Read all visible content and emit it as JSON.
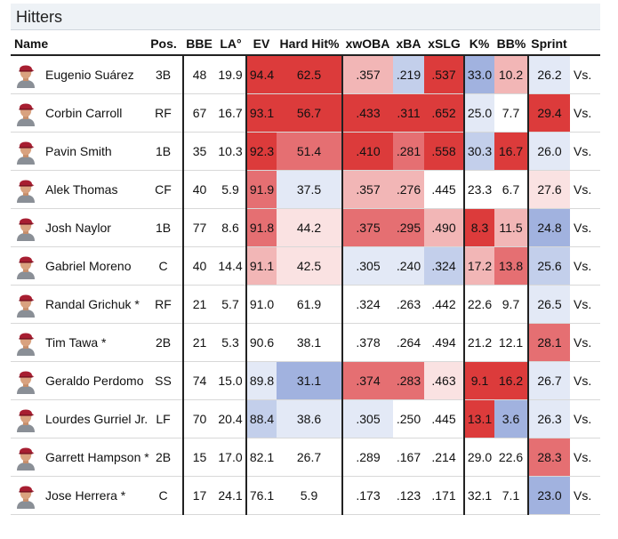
{
  "section_title": "Hitters",
  "columns": {
    "name": "Name",
    "pos": "Pos.",
    "bbe": "BBE",
    "la": "LA°",
    "ev": "EV",
    "hardhit": "Hard Hit%",
    "xwoba": "xwOBA",
    "xba": "xBA",
    "xslg": "xSLG",
    "k": "K%",
    "bb": "BB%",
    "sprint": "Sprint"
  },
  "heat_colors": {
    "red_strong": "#dc3b3b",
    "red_mid": "#e56f72",
    "red_light": "#f2b6b6",
    "red_faint": "#fae2e2",
    "neutral": "#ffffff",
    "blue_faint": "#e3e9f6",
    "blue_light": "#c3cfeb",
    "blue_mid": "#a1b2df"
  },
  "rows": [
    {
      "name": "Eugenio Suárez",
      "pos": "3B",
      "bbe": "48",
      "la": "19.9",
      "ev": "94.4",
      "hardhit": "62.5",
      "xwoba": ".357",
      "xba": ".219",
      "xslg": ".537",
      "k": "33.0",
      "bb": "10.2",
      "sprint": "26.2",
      "vs": "Vs.",
      "shade": {
        "ev": "red_strong",
        "hardhit": "red_strong",
        "xwoba": "red_light",
        "xba": "blue_light",
        "xslg": "red_strong",
        "k": "blue_mid",
        "bb": "red_light",
        "sprint": "blue_faint"
      }
    },
    {
      "name": "Corbin Carroll",
      "pos": "RF",
      "bbe": "67",
      "la": "16.7",
      "ev": "93.1",
      "hardhit": "56.7",
      "xwoba": ".433",
      "xba": ".311",
      "xslg": ".652",
      "k": "25.0",
      "bb": "7.7",
      "sprint": "29.4",
      "vs": "Vs.",
      "shade": {
        "ev": "red_strong",
        "hardhit": "red_strong",
        "xwoba": "red_strong",
        "xba": "red_strong",
        "xslg": "red_strong",
        "k": "blue_faint",
        "bb": "neutral",
        "sprint": "red_strong"
      }
    },
    {
      "name": "Pavin Smith",
      "pos": "1B",
      "bbe": "35",
      "la": "10.3",
      "ev": "92.3",
      "hardhit": "51.4",
      "xwoba": ".410",
      "xba": ".281",
      "xslg": ".558",
      "k": "30.3",
      "bb": "16.7",
      "sprint": "26.0",
      "vs": "Vs.",
      "shade": {
        "ev": "red_strong",
        "hardhit": "red_mid",
        "xwoba": "red_strong",
        "xba": "red_mid",
        "xslg": "red_strong",
        "k": "blue_light",
        "bb": "red_strong",
        "sprint": "blue_faint"
      }
    },
    {
      "name": "Alek Thomas",
      "pos": "CF",
      "bbe": "40",
      "la": "5.9",
      "ev": "91.9",
      "hardhit": "37.5",
      "xwoba": ".357",
      "xba": ".276",
      "xslg": ".445",
      "k": "23.3",
      "bb": "6.7",
      "sprint": "27.6",
      "vs": "Vs.",
      "shade": {
        "ev": "red_mid",
        "hardhit": "blue_faint",
        "xwoba": "red_light",
        "xba": "red_light",
        "xslg": "neutral",
        "k": "neutral",
        "bb": "neutral",
        "sprint": "red_faint"
      }
    },
    {
      "name": "Josh Naylor",
      "pos": "1B",
      "bbe": "77",
      "la": "8.6",
      "ev": "91.8",
      "hardhit": "44.2",
      "xwoba": ".375",
      "xba": ".295",
      "xslg": ".490",
      "k": "8.3",
      "bb": "11.5",
      "sprint": "24.8",
      "vs": "Vs.",
      "shade": {
        "ev": "red_mid",
        "hardhit": "red_faint",
        "xwoba": "red_mid",
        "xba": "red_mid",
        "xslg": "red_light",
        "k": "red_strong",
        "bb": "red_light",
        "sprint": "blue_mid"
      }
    },
    {
      "name": "Gabriel Moreno",
      "pos": "C",
      "bbe": "40",
      "la": "14.4",
      "ev": "91.1",
      "hardhit": "42.5",
      "xwoba": ".305",
      "xba": ".240",
      "xslg": ".324",
      "k": "17.2",
      "bb": "13.8",
      "sprint": "25.6",
      "vs": "Vs.",
      "shade": {
        "ev": "red_light",
        "hardhit": "red_faint",
        "xwoba": "blue_faint",
        "xba": "blue_faint",
        "xslg": "blue_light",
        "k": "red_light",
        "bb": "red_mid",
        "sprint": "blue_light"
      }
    },
    {
      "name": "Randal Grichuk *",
      "pos": "RF",
      "bbe": "21",
      "la": "5.7",
      "ev": "91.0",
      "hardhit": "61.9",
      "xwoba": ".324",
      "xba": ".263",
      "xslg": ".442",
      "k": "22.6",
      "bb": "9.7",
      "sprint": "26.5",
      "vs": "Vs.",
      "shade": {
        "ev": "neutral",
        "hardhit": "neutral",
        "xwoba": "neutral",
        "xba": "neutral",
        "xslg": "neutral",
        "k": "neutral",
        "bb": "neutral",
        "sprint": "blue_faint"
      }
    },
    {
      "name": "Tim Tawa *",
      "pos": "2B",
      "bbe": "21",
      "la": "5.3",
      "ev": "90.6",
      "hardhit": "38.1",
      "xwoba": ".378",
      "xba": ".264",
      "xslg": ".494",
      "k": "21.2",
      "bb": "12.1",
      "sprint": "28.1",
      "vs": "Vs.",
      "shade": {
        "ev": "neutral",
        "hardhit": "neutral",
        "xwoba": "neutral",
        "xba": "neutral",
        "xslg": "neutral",
        "k": "neutral",
        "bb": "neutral",
        "sprint": "red_mid"
      }
    },
    {
      "name": "Geraldo Perdomo",
      "pos": "SS",
      "bbe": "74",
      "la": "15.0",
      "ev": "89.8",
      "hardhit": "31.1",
      "xwoba": ".374",
      "xba": ".283",
      "xslg": ".463",
      "k": "9.1",
      "bb": "16.2",
      "sprint": "26.7",
      "vs": "Vs.",
      "shade": {
        "ev": "blue_faint",
        "hardhit": "blue_mid",
        "xwoba": "red_mid",
        "xba": "red_mid",
        "xslg": "red_faint",
        "k": "red_strong",
        "bb": "red_strong",
        "sprint": "blue_faint"
      }
    },
    {
      "name": "Lourdes Gurriel Jr.",
      "pos": "LF",
      "bbe": "70",
      "la": "20.4",
      "ev": "88.4",
      "hardhit": "38.6",
      "xwoba": ".305",
      "xba": ".250",
      "xslg": ".445",
      "k": "13.1",
      "bb": "3.6",
      "sprint": "26.3",
      "vs": "Vs.",
      "shade": {
        "ev": "blue_light",
        "hardhit": "blue_faint",
        "xwoba": "blue_faint",
        "xba": "neutral",
        "xslg": "neutral",
        "k": "red_strong",
        "bb": "blue_mid",
        "sprint": "blue_faint"
      }
    },
    {
      "name": "Garrett Hampson *",
      "pos": "2B",
      "bbe": "15",
      "la": "17.0",
      "ev": "82.1",
      "hardhit": "26.7",
      "xwoba": ".289",
      "xba": ".167",
      "xslg": ".214",
      "k": "29.0",
      "bb": "22.6",
      "sprint": "28.3",
      "vs": "Vs.",
      "shade": {
        "ev": "neutral",
        "hardhit": "neutral",
        "xwoba": "neutral",
        "xba": "neutral",
        "xslg": "neutral",
        "k": "neutral",
        "bb": "neutral",
        "sprint": "red_mid"
      }
    },
    {
      "name": "Jose Herrera *",
      "pos": "C",
      "bbe": "17",
      "la": "24.1",
      "ev": "76.1",
      "hardhit": "5.9",
      "xwoba": ".173",
      "xba": ".123",
      "xslg": ".171",
      "k": "32.1",
      "bb": "7.1",
      "sprint": "23.0",
      "vs": "Vs.",
      "shade": {
        "ev": "neutral",
        "hardhit": "neutral",
        "xwoba": "neutral",
        "xba": "neutral",
        "xslg": "neutral",
        "k": "neutral",
        "bb": "neutral",
        "sprint": "blue_mid"
      }
    }
  ]
}
